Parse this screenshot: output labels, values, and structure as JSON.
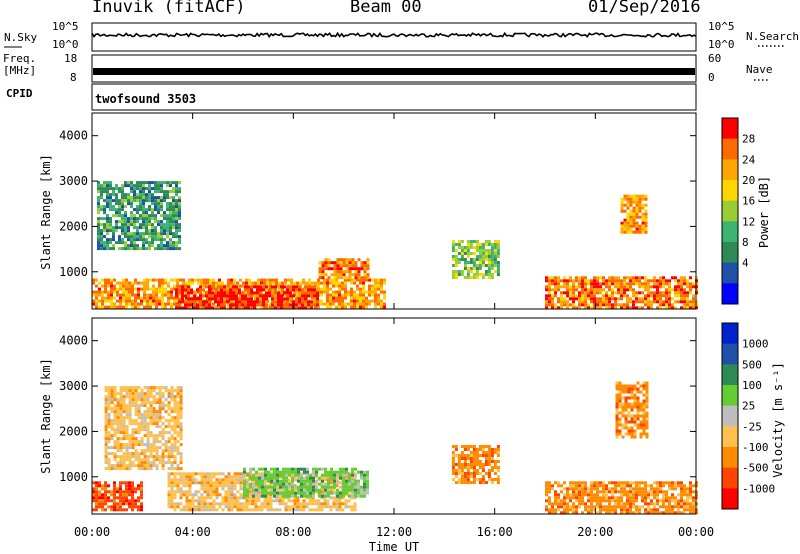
{
  "header": {
    "site": "Inuvik (fitACF)",
    "beam": "Beam 00",
    "date": "01/Sep/2016"
  },
  "left_labels": {
    "nsky": "N.Sky",
    "nsky_top": "10^5",
    "nsky_bottom": "10^0",
    "freq_line1": "Freq.",
    "freq_line2": "[MHz]",
    "freq_top": "18",
    "freq_bottom": "8",
    "cpid": "CPID"
  },
  "right_labels": {
    "nsearch": "N.Search",
    "nsearch_top": "10^5",
    "nsearch_bottom": "10^0",
    "nave": "Nave",
    "nave_top": "60",
    "nave_bottom": "0"
  },
  "cpid_text": "twofsound 3503",
  "colors": {
    "power_scale": [
      "#0000ff",
      "#1f4fa8",
      "#2e8b57",
      "#3cb371",
      "#9acd32",
      "#ffd700",
      "#ffa500",
      "#ff6a00",
      "#ff0000"
    ],
    "velocity_scale": [
      "#ff0000",
      "#ff4500",
      "#ff8c00",
      "#ffc04d",
      "#bebebe",
      "#66cc33",
      "#2e8b57",
      "#1f4fa8",
      "#0022cc"
    ]
  },
  "chart_data": [
    {
      "type": "heatmap",
      "title": "",
      "xlabel": "",
      "ylabel": "Slant Range [km]",
      "xlim": [
        "00:00",
        "24:00"
      ],
      "ylim": [
        180,
        4500
      ],
      "x_ticks": [
        "00:00",
        "04:00",
        "08:00",
        "12:00",
        "16:00",
        "20:00",
        "00:00"
      ],
      "y_ticks": [
        "1000",
        "2000",
        "3000",
        "4000"
      ],
      "colorbar": {
        "label": "Power [dB]",
        "ticks": [
          "4",
          "8",
          "12",
          "16",
          "20",
          "24",
          "28"
        ],
        "range": [
          0,
          30
        ]
      },
      "regions": [
        {
          "x": [
            0.0,
            11.6
          ],
          "y": [
            200,
            850
          ],
          "value": 22
        },
        {
          "x": [
            3.3,
            9.0
          ],
          "y": [
            200,
            700
          ],
          "value": 28
        },
        {
          "x": [
            0.2,
            3.5
          ],
          "y": [
            1500,
            3000
          ],
          "value": 10
        },
        {
          "x": [
            9.0,
            11.0
          ],
          "y": [
            850,
            1300
          ],
          "value": 24
        },
        {
          "x": [
            18.0,
            24.0
          ],
          "y": [
            200,
            900
          ],
          "value": 24
        },
        {
          "x": [
            21.0,
            22.0
          ],
          "y": [
            1900,
            2700
          ],
          "value": 22
        },
        {
          "x": [
            14.3,
            16.2
          ],
          "y": [
            900,
            1700
          ],
          "value": 14
        }
      ]
    },
    {
      "type": "heatmap",
      "title": "",
      "xlabel": "Time UT",
      "ylabel": "Slant Range [km]",
      "xlim": [
        "00:00",
        "24:00"
      ],
      "ylim": [
        180,
        4500
      ],
      "x_ticks": [
        "00:00",
        "04:00",
        "08:00",
        "12:00",
        "16:00",
        "20:00",
        "00:00"
      ],
      "y_ticks": [
        "1000",
        "2000",
        "3000",
        "4000"
      ],
      "colorbar": {
        "label": "Velocity [m s⁻¹]",
        "ticks": [
          "1000",
          "500",
          "100",
          "25",
          "-25",
          "-100",
          "-500",
          "-1000"
        ]
      },
      "regions": [
        {
          "x": [
            0.0,
            2.0
          ],
          "y": [
            300,
            900
          ],
          "value": -500
        },
        {
          "x": [
            0.5,
            3.5
          ],
          "y": [
            1200,
            3000
          ],
          "value": 0
        },
        {
          "x": [
            3.0,
            10.5
          ],
          "y": [
            300,
            1100
          ],
          "value": 0
        },
        {
          "x": [
            6.0,
            11.0
          ],
          "y": [
            600,
            1200
          ],
          "value": 100
        },
        {
          "x": [
            18.0,
            24.0
          ],
          "y": [
            200,
            900
          ],
          "value": -100
        },
        {
          "x": [
            20.8,
            22.0
          ],
          "y": [
            1900,
            3100
          ],
          "value": -100
        },
        {
          "x": [
            14.3,
            16.2
          ],
          "y": [
            900,
            1700
          ],
          "value": -100
        }
      ]
    }
  ]
}
